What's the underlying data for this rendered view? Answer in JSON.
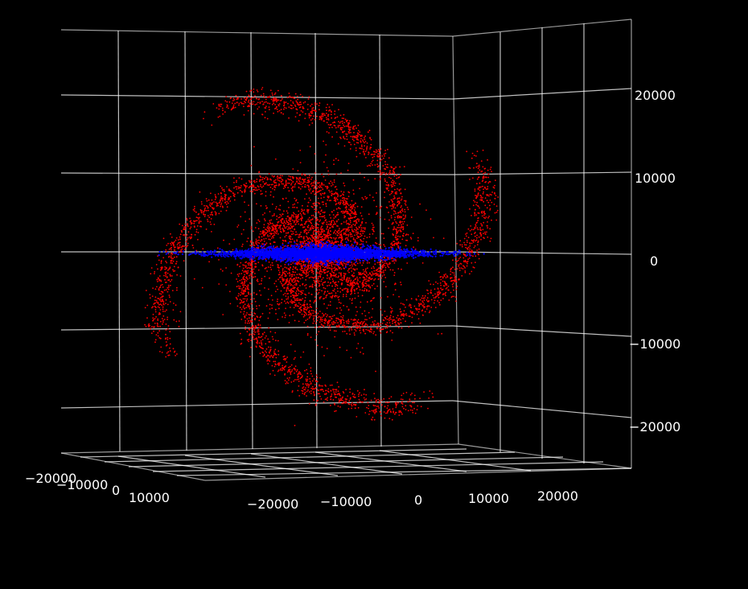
{
  "chart_data": {
    "type": "scatter",
    "projection": "3d",
    "title": "",
    "xlabel": "",
    "ylabel": "",
    "zlabel": "",
    "grid": true,
    "background": "#000000",
    "grid_color": "#ffffff",
    "axes": {
      "x": {
        "range": [
          -25000,
          25000
        ],
        "ticks": [
          -20000,
          -10000,
          0,
          10000,
          20000
        ],
        "tick_labels": [
          "−20000",
          "−10000",
          "0",
          "10000",
          "20000"
        ]
      },
      "y": {
        "range": [
          -25000,
          25000
        ],
        "ticks": [
          -20000,
          -10000,
          0,
          10000
        ],
        "tick_labels": [
          "−20000",
          "−10000",
          "0",
          "10000"
        ]
      },
      "z": {
        "range": [
          -28000,
          28000
        ],
        "ticks": [
          20000,
          10000,
          0,
          -10000,
          -20000
        ],
        "tick_labels": [
          "20000",
          "10000",
          "0",
          "−10000",
          "−20000"
        ]
      }
    },
    "series": [
      {
        "color": "#ff0000",
        "description_visible": "spiral galaxy disk viewed face-on",
        "arms": 4,
        "radius_range": [
          0,
          24000
        ],
        "bulge_radius": 6000,
        "point_count_approx": 12000
      },
      {
        "color": "#0000ff",
        "description_visible": "thin edge-on disk along the horizontal",
        "radius_range": [
          0,
          20000
        ],
        "thickness": 1200,
        "point_count_approx": 6000
      }
    ]
  }
}
